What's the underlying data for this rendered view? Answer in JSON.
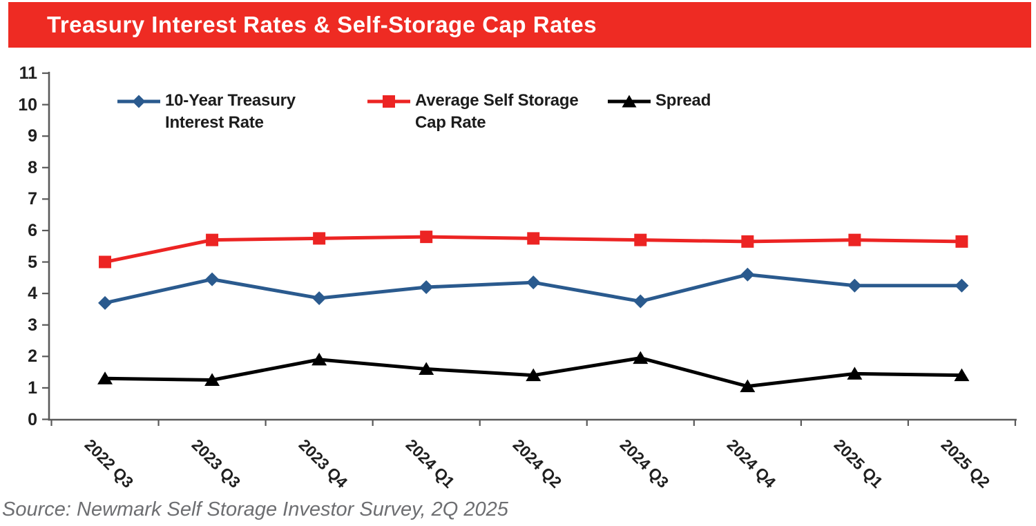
{
  "title_bar": {
    "text": "Treasury Interest Rates & Self-Storage Cap Rates",
    "background": "#ee2b23",
    "text_color": "#ffffff"
  },
  "source_note": "Source: Newmark Self Storage Investor Survey, 2Q 2025",
  "chart_data": {
    "type": "line",
    "categories": [
      "2022 Q3",
      "2023 Q3",
      "2023 Q4",
      "2024 Q1",
      "2024 Q2",
      "2024 Q3",
      "2024 Q4",
      "2025 Q1",
      "2025 Q2"
    ],
    "series": [
      {
        "name": "10-Year Treasury\nInterest Rate",
        "marker": "diamond",
        "color": "#2a5a8e",
        "values": [
          3.7,
          4.45,
          3.85,
          4.2,
          4.35,
          3.75,
          4.6,
          4.25,
          4.25
        ]
      },
      {
        "name": "Average Self Storage\nCap Rate",
        "marker": "square",
        "color": "#ec2423",
        "values": [
          5.0,
          5.7,
          5.75,
          5.8,
          5.75,
          5.7,
          5.65,
          5.7,
          5.65
        ]
      },
      {
        "name": "Spread",
        "marker": "triangle",
        "color": "#000000",
        "values": [
          1.3,
          1.25,
          1.9,
          1.6,
          1.4,
          1.95,
          1.05,
          1.45,
          1.4
        ]
      }
    ],
    "title": "Treasury Interest Rates & Self-Storage Cap Rates",
    "xlabel": "",
    "ylabel": "",
    "ylim": [
      0,
      11
    ],
    "ytick_step": 1,
    "grid": false,
    "legend_position": "top",
    "axis_color": "#595959",
    "label_color": "#1f1f1f"
  }
}
